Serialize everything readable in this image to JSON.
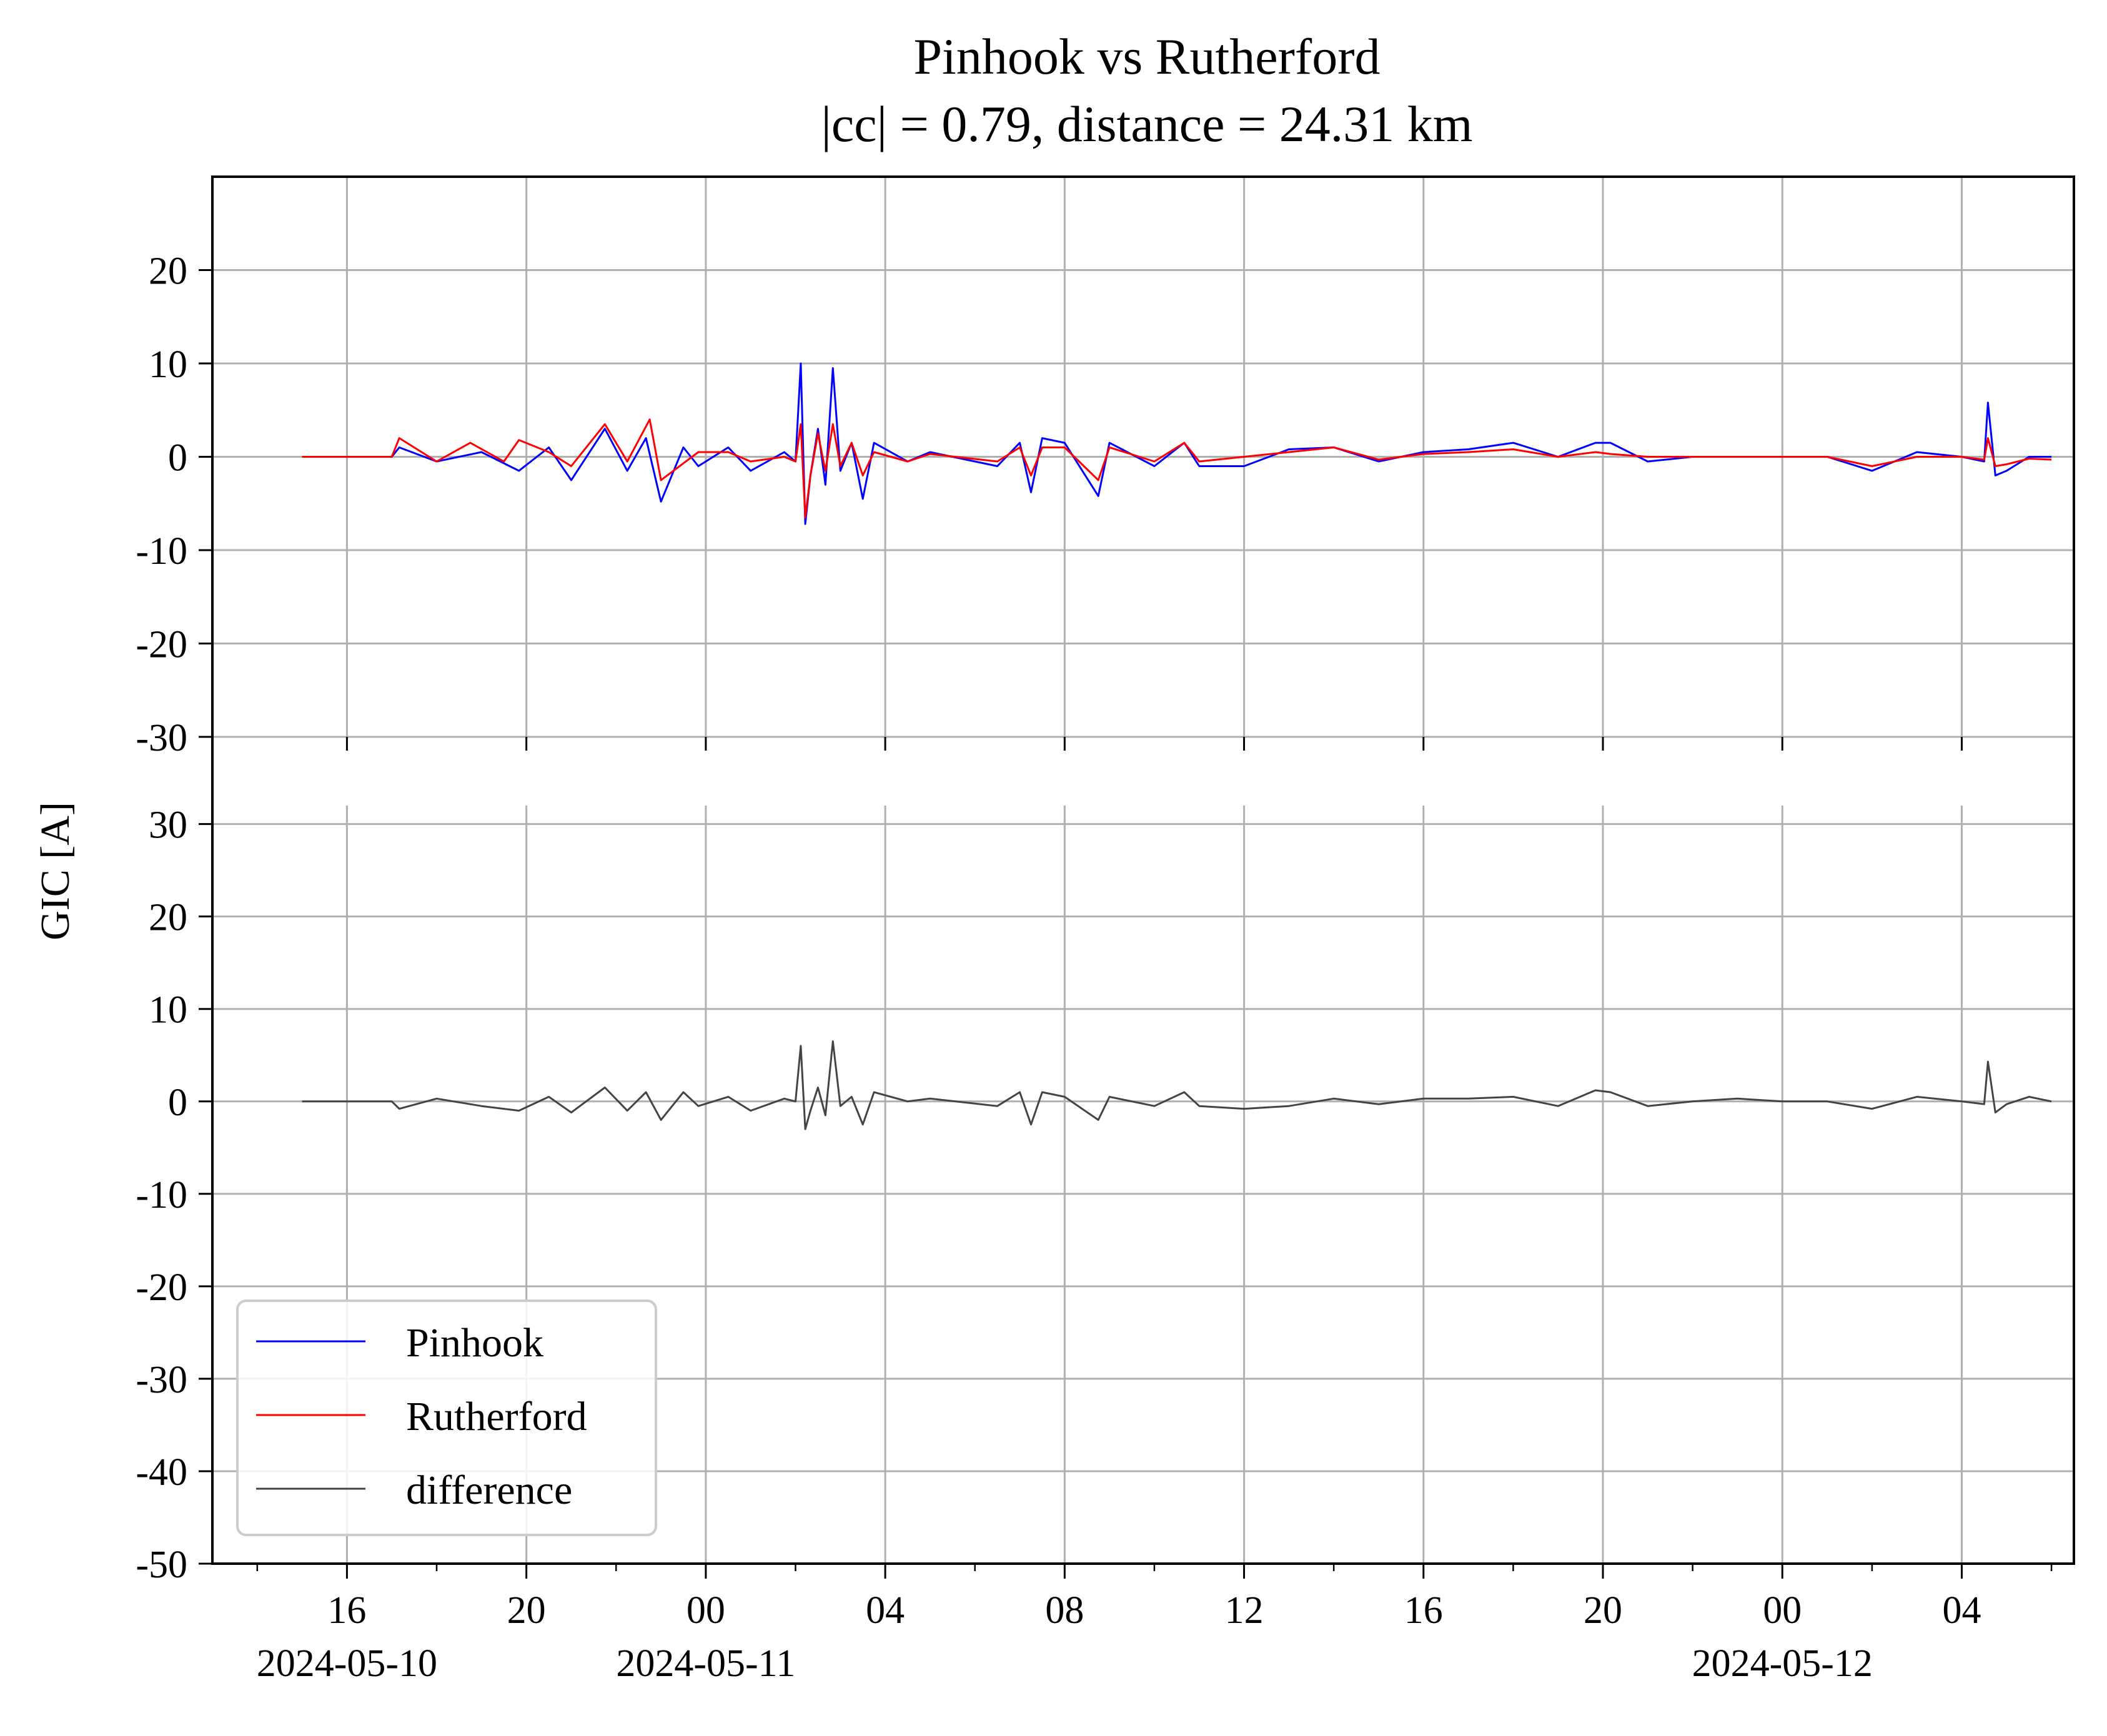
{
  "chart_data": {
    "type": "line",
    "title": "Pinhook vs Rutherford",
    "subtitle": "|cc| = 0.79, distance = 24.31 km",
    "ylabel": "GIC [A]",
    "xlabel": "",
    "x_range": [
      "2024-05-10T13:00",
      "2024-05-12T06:30"
    ],
    "x_tick_labels": [
      "16",
      "20",
      "00",
      "04",
      "08",
      "12",
      "16",
      "20",
      "00",
      "04"
    ],
    "x_tick_times": [
      "2024-05-10T16:00",
      "2024-05-10T20:00",
      "2024-05-11T00:00",
      "2024-05-11T04:00",
      "2024-05-11T08:00",
      "2024-05-11T12:00",
      "2024-05-11T16:00",
      "2024-05-11T20:00",
      "2024-05-12T00:00",
      "2024-05-12T04:00"
    ],
    "date_labels": [
      {
        "time": "2024-05-10T16:00",
        "label": "2024-05-10"
      },
      {
        "time": "2024-05-11T00:00",
        "label": "2024-05-11"
      },
      {
        "time": "2024-05-12T00:00",
        "label": "2024-05-12"
      }
    ],
    "grid": true,
    "legend_placement": "lower-left",
    "panels": [
      {
        "name": "top",
        "ylim": [
          -30,
          30
        ],
        "y_ticks": [
          -30,
          -20,
          -10,
          0,
          10,
          20
        ],
        "series": [
          {
            "name": "Pinhook",
            "color": "#0000ff",
            "points": [
              [
                "2024-05-10T15:00",
                0.0
              ],
              [
                "2024-05-10T17:00",
                0.0
              ],
              [
                "2024-05-10T17:10",
                1.0
              ],
              [
                "2024-05-10T18:00",
                -0.5
              ],
              [
                "2024-05-10T19:00",
                0.5
              ],
              [
                "2024-05-10T19:50",
                -1.5
              ],
              [
                "2024-05-10T20:30",
                1.0
              ],
              [
                "2024-05-10T21:00",
                -2.5
              ],
              [
                "2024-05-10T21:45",
                3.0
              ],
              [
                "2024-05-10T22:15",
                -1.5
              ],
              [
                "2024-05-10T22:40",
                2.0
              ],
              [
                "2024-05-10T23:00",
                -4.8
              ],
              [
                "2024-05-10T23:30",
                1.0
              ],
              [
                "2024-05-10T23:50",
                -1.0
              ],
              [
                "2024-05-11T00:30",
                1.0
              ],
              [
                "2024-05-11T01:00",
                -1.5
              ],
              [
                "2024-05-11T01:45",
                0.5
              ],
              [
                "2024-05-11T02:00",
                -0.5
              ],
              [
                "2024-05-11T02:07",
                10.0
              ],
              [
                "2024-05-11T02:13",
                -7.2
              ],
              [
                "2024-05-11T02:20",
                -2.0
              ],
              [
                "2024-05-11T02:30",
                3.0
              ],
              [
                "2024-05-11T02:40",
                -3.0
              ],
              [
                "2024-05-11T02:50",
                9.5
              ],
              [
                "2024-05-11T03:00",
                -1.5
              ],
              [
                "2024-05-11T03:15",
                1.5
              ],
              [
                "2024-05-11T03:30",
                -4.5
              ],
              [
                "2024-05-11T03:45",
                1.5
              ],
              [
                "2024-05-11T04:30",
                -0.5
              ],
              [
                "2024-05-11T05:00",
                0.5
              ],
              [
                "2024-05-11T06:30",
                -1.0
              ],
              [
                "2024-05-11T07:00",
                1.5
              ],
              [
                "2024-05-11T07:15",
                -3.8
              ],
              [
                "2024-05-11T07:30",
                2.0
              ],
              [
                "2024-05-11T08:00",
                1.5
              ],
              [
                "2024-05-11T08:45",
                -4.2
              ],
              [
                "2024-05-11T09:00",
                1.5
              ],
              [
                "2024-05-11T10:00",
                -1.0
              ],
              [
                "2024-05-11T10:40",
                1.5
              ],
              [
                "2024-05-11T11:00",
                -1.0
              ],
              [
                "2024-05-11T12:00",
                -1.0
              ],
              [
                "2024-05-11T13:00",
                0.8
              ],
              [
                "2024-05-11T14:00",
                1.0
              ],
              [
                "2024-05-11T15:00",
                -0.5
              ],
              [
                "2024-05-11T16:00",
                0.5
              ],
              [
                "2024-05-11T17:00",
                0.8
              ],
              [
                "2024-05-11T18:00",
                1.5
              ],
              [
                "2024-05-11T19:00",
                0.0
              ],
              [
                "2024-05-11T19:50",
                1.5
              ],
              [
                "2024-05-11T20:10",
                1.5
              ],
              [
                "2024-05-11T21:00",
                -0.5
              ],
              [
                "2024-05-11T22:00",
                0.0
              ],
              [
                "2024-05-11T23:00",
                0.0
              ],
              [
                "2024-05-12T00:00",
                0.0
              ],
              [
                "2024-05-12T01:00",
                0.0
              ],
              [
                "2024-05-12T02:00",
                -1.5
              ],
              [
                "2024-05-12T03:00",
                0.5
              ],
              [
                "2024-05-12T04:00",
                0.0
              ],
              [
                "2024-05-12T04:30",
                -0.5
              ],
              [
                "2024-05-12T04:35",
                5.8
              ],
              [
                "2024-05-12T04:45",
                -2.0
              ],
              [
                "2024-05-12T05:00",
                -1.5
              ],
              [
                "2024-05-12T05:30",
                0.0
              ],
              [
                "2024-05-12T06:00",
                0.0
              ]
            ]
          },
          {
            "name": "Rutherford",
            "color": "#ff0000",
            "points": [
              [
                "2024-05-10T15:00",
                0.0
              ],
              [
                "2024-05-10T17:00",
                0.0
              ],
              [
                "2024-05-10T17:10",
                2.0
              ],
              [
                "2024-05-10T18:00",
                -0.5
              ],
              [
                "2024-05-10T18:45",
                1.5
              ],
              [
                "2024-05-10T19:30",
                -0.5
              ],
              [
                "2024-05-10T19:50",
                1.8
              ],
              [
                "2024-05-10T20:30",
                0.5
              ],
              [
                "2024-05-10T21:00",
                -1.0
              ],
              [
                "2024-05-10T21:45",
                3.5
              ],
              [
                "2024-05-10T22:15",
                -0.5
              ],
              [
                "2024-05-10T22:45",
                4.0
              ],
              [
                "2024-05-10T23:00",
                -2.5
              ],
              [
                "2024-05-10T23:50",
                0.5
              ],
              [
                "2024-05-11T00:30",
                0.5
              ],
              [
                "2024-05-11T01:00",
                -0.5
              ],
              [
                "2024-05-11T01:45",
                0.0
              ],
              [
                "2024-05-11T02:00",
                -0.5
              ],
              [
                "2024-05-11T02:07",
                3.5
              ],
              [
                "2024-05-11T02:13",
                -6.5
              ],
              [
                "2024-05-11T02:20",
                -2.0
              ],
              [
                "2024-05-11T02:30",
                2.5
              ],
              [
                "2024-05-11T02:40",
                -1.5
              ],
              [
                "2024-05-11T02:50",
                3.5
              ],
              [
                "2024-05-11T03:00",
                -1.0
              ],
              [
                "2024-05-11T03:15",
                1.5
              ],
              [
                "2024-05-11T03:30",
                -2.0
              ],
              [
                "2024-05-11T03:45",
                0.5
              ],
              [
                "2024-05-11T04:30",
                -0.5
              ],
              [
                "2024-05-11T05:00",
                0.3
              ],
              [
                "2024-05-11T06:30",
                -0.5
              ],
              [
                "2024-05-11T07:00",
                1.0
              ],
              [
                "2024-05-11T07:15",
                -2.0
              ],
              [
                "2024-05-11T07:30",
                1.0
              ],
              [
                "2024-05-11T08:00",
                1.0
              ],
              [
                "2024-05-11T08:45",
                -2.5
              ],
              [
                "2024-05-11T09:00",
                1.0
              ],
              [
                "2024-05-11T10:00",
                -0.5
              ],
              [
                "2024-05-11T10:40",
                1.5
              ],
              [
                "2024-05-11T11:00",
                -0.5
              ],
              [
                "2024-05-11T12:00",
                0.0
              ],
              [
                "2024-05-11T13:00",
                0.5
              ],
              [
                "2024-05-11T14:00",
                1.0
              ],
              [
                "2024-05-11T15:00",
                -0.3
              ],
              [
                "2024-05-11T16:00",
                0.3
              ],
              [
                "2024-05-11T17:00",
                0.5
              ],
              [
                "2024-05-11T18:00",
                0.8
              ],
              [
                "2024-05-11T19:00",
                0.0
              ],
              [
                "2024-05-11T19:50",
                0.5
              ],
              [
                "2024-05-11T20:10",
                0.3
              ],
              [
                "2024-05-11T21:00",
                0.0
              ],
              [
                "2024-05-11T22:00",
                0.0
              ],
              [
                "2024-05-11T23:00",
                0.0
              ],
              [
                "2024-05-12T00:00",
                0.0
              ],
              [
                "2024-05-12T01:00",
                0.0
              ],
              [
                "2024-05-12T02:00",
                -1.0
              ],
              [
                "2024-05-12T03:00",
                0.0
              ],
              [
                "2024-05-12T04:00",
                0.0
              ],
              [
                "2024-05-12T04:30",
                -0.3
              ],
              [
                "2024-05-12T04:35",
                2.0
              ],
              [
                "2024-05-12T04:45",
                -1.0
              ],
              [
                "2024-05-12T05:00",
                -0.8
              ],
              [
                "2024-05-12T05:30",
                -0.2
              ],
              [
                "2024-05-12T06:00",
                -0.3
              ]
            ]
          }
        ]
      },
      {
        "name": "bottom",
        "ylim": [
          -50,
          32
        ],
        "y_ticks": [
          -50,
          -40,
          -30,
          -20,
          -10,
          0,
          10,
          20,
          30
        ],
        "series": [
          {
            "name": "difference",
            "color": "#444444",
            "points": [
              [
                "2024-05-10T15:00",
                0.0
              ],
              [
                "2024-05-10T17:00",
                0.0
              ],
              [
                "2024-05-10T17:10",
                -0.8
              ],
              [
                "2024-05-10T18:00",
                0.3
              ],
              [
                "2024-05-10T19:00",
                -0.5
              ],
              [
                "2024-05-10T19:50",
                -1.0
              ],
              [
                "2024-05-10T20:30",
                0.5
              ],
              [
                "2024-05-10T21:00",
                -1.2
              ],
              [
                "2024-05-10T21:45",
                1.5
              ],
              [
                "2024-05-10T22:15",
                -1.0
              ],
              [
                "2024-05-10T22:40",
                1.0
              ],
              [
                "2024-05-10T23:00",
                -2.0
              ],
              [
                "2024-05-10T23:30",
                1.0
              ],
              [
                "2024-05-10T23:50",
                -0.5
              ],
              [
                "2024-05-11T00:30",
                0.5
              ],
              [
                "2024-05-11T01:00",
                -1.0
              ],
              [
                "2024-05-11T01:45",
                0.3
              ],
              [
                "2024-05-11T02:00",
                0.0
              ],
              [
                "2024-05-11T02:07",
                6.0
              ],
              [
                "2024-05-11T02:13",
                -3.0
              ],
              [
                "2024-05-11T02:20",
                -1.0
              ],
              [
                "2024-05-11T02:30",
                1.5
              ],
              [
                "2024-05-11T02:40",
                -1.5
              ],
              [
                "2024-05-11T02:50",
                6.5
              ],
              [
                "2024-05-11T03:00",
                -0.5
              ],
              [
                "2024-05-11T03:15",
                0.5
              ],
              [
                "2024-05-11T03:30",
                -2.5
              ],
              [
                "2024-05-11T03:45",
                1.0
              ],
              [
                "2024-05-11T04:30",
                0.0
              ],
              [
                "2024-05-11T05:00",
                0.3
              ],
              [
                "2024-05-11T06:30",
                -0.5
              ],
              [
                "2024-05-11T07:00",
                1.0
              ],
              [
                "2024-05-11T07:15",
                -2.5
              ],
              [
                "2024-05-11T07:30",
                1.0
              ],
              [
                "2024-05-11T08:00",
                0.5
              ],
              [
                "2024-05-11T08:45",
                -2.0
              ],
              [
                "2024-05-11T09:00",
                0.5
              ],
              [
                "2024-05-11T10:00",
                -0.5
              ],
              [
                "2024-05-11T10:40",
                1.0
              ],
              [
                "2024-05-11T11:00",
                -0.5
              ],
              [
                "2024-05-11T12:00",
                -0.8
              ],
              [
                "2024-05-11T13:00",
                -0.5
              ],
              [
                "2024-05-11T14:00",
                0.3
              ],
              [
                "2024-05-11T15:00",
                -0.3
              ],
              [
                "2024-05-11T16:00",
                0.3
              ],
              [
                "2024-05-11T17:00",
                0.3
              ],
              [
                "2024-05-11T18:00",
                0.5
              ],
              [
                "2024-05-11T19:00",
                -0.5
              ],
              [
                "2024-05-11T19:50",
                1.2
              ],
              [
                "2024-05-11T20:10",
                1.0
              ],
              [
                "2024-05-11T21:00",
                -0.5
              ],
              [
                "2024-05-11T22:00",
                0.0
              ],
              [
                "2024-05-11T23:00",
                0.3
              ],
              [
                "2024-05-12T00:00",
                0.0
              ],
              [
                "2024-05-12T01:00",
                0.0
              ],
              [
                "2024-05-12T02:00",
                -0.8
              ],
              [
                "2024-05-12T03:00",
                0.5
              ],
              [
                "2024-05-12T04:00",
                0.0
              ],
              [
                "2024-05-12T04:30",
                -0.3
              ],
              [
                "2024-05-12T04:35",
                4.3
              ],
              [
                "2024-05-12T04:45",
                -1.2
              ],
              [
                "2024-05-12T05:00",
                -0.3
              ],
              [
                "2024-05-12T05:30",
                0.5
              ],
              [
                "2024-05-12T06:00",
                0.0
              ]
            ]
          }
        ]
      }
    ]
  }
}
